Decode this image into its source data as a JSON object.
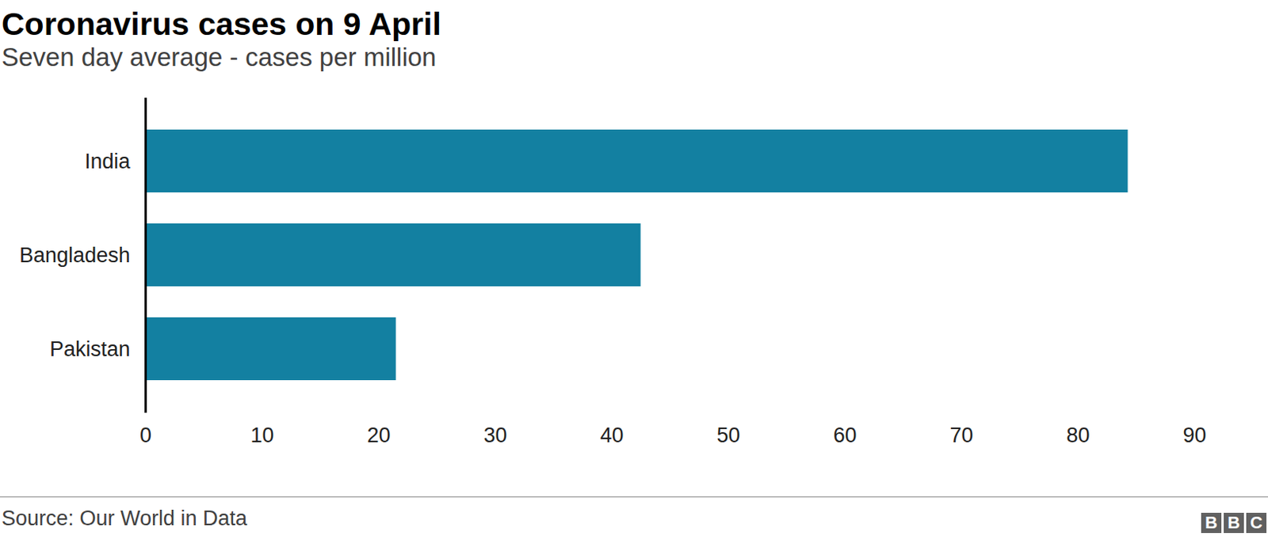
{
  "chart_data": {
    "type": "bar",
    "orientation": "horizontal",
    "title": "Coronavirus cases on 9 April",
    "subtitle": "Seven day average - cases per million",
    "categories": [
      "India",
      "Bangladesh",
      "Pakistan"
    ],
    "values": [
      84.3,
      42.5,
      21.5
    ],
    "color": "#1380a1",
    "xlim": [
      0,
      90
    ],
    "xticks": [
      0,
      10,
      20,
      30,
      40,
      50,
      60,
      70,
      80,
      90
    ],
    "grid": false,
    "source": "Source: Our World in Data",
    "logo": "BBC"
  }
}
